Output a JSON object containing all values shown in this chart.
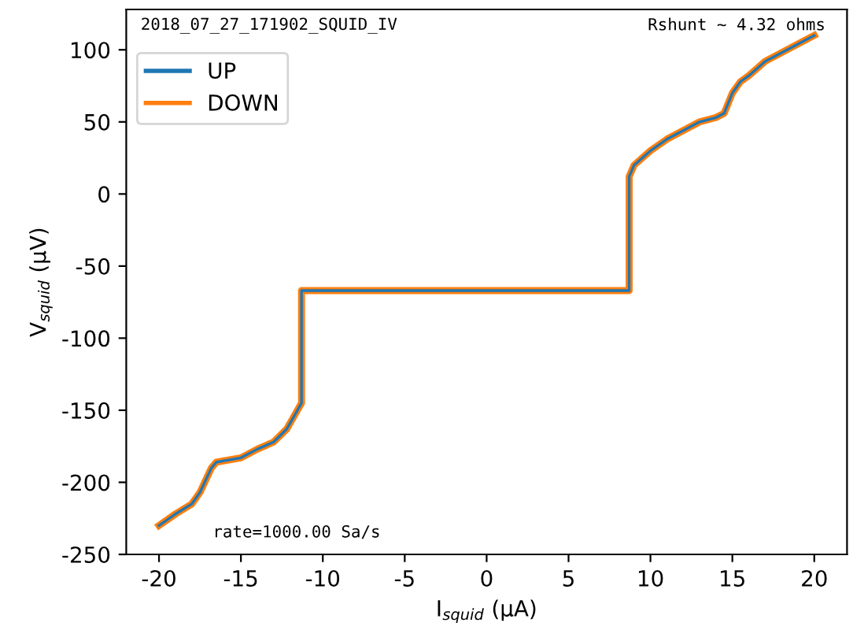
{
  "chart_data": {
    "type": "line",
    "xlabel": "I$_{squid}$ (μA)",
    "ylabel": "V$_{squid}$ (μV)",
    "xlim": [
      -22,
      22
    ],
    "ylim": [
      -250,
      128
    ],
    "xticks": [
      -20,
      -15,
      -10,
      -5,
      0,
      5,
      10,
      15,
      20
    ],
    "yticks": [
      -250,
      -200,
      -150,
      -100,
      -50,
      0,
      50,
      100
    ],
    "grid": false,
    "legend": "top left",
    "marker": "none",
    "line_style": "solid",
    "annotations": [
      "2018_07_27_171902_SQUID_IV",
      "Rshunt ~ 4.32 ohms",
      "rate=1000.00 Sa/s"
    ],
    "series": [
      {
        "name": "UP",
        "color": "#1f77b4",
        "x": [
          -20,
          -19,
          -18,
          -17.5,
          -16.8,
          -16.5,
          -15,
          -14,
          -13,
          -12.2,
          -11.8,
          -11.3,
          -11.3,
          -8,
          -4,
          0,
          4,
          8.7,
          8.7,
          9,
          10,
          11,
          12,
          13,
          14,
          14.5,
          15,
          15.5,
          16,
          17,
          18,
          19,
          20
        ],
        "values": [
          -230,
          -222,
          -215,
          -207,
          -190,
          -186,
          -183,
          -177,
          -172,
          -163,
          -155,
          -145,
          -67,
          -67,
          -67,
          -67,
          -67,
          -67,
          12,
          20,
          30,
          38,
          44,
          50,
          53,
          56,
          70,
          78,
          82,
          92,
          98,
          104,
          110
        ]
      },
      {
        "name": "DOWN",
        "color": "#ff7f0e",
        "x": [
          -20,
          -19,
          -18,
          -17.5,
          -16.8,
          -16.5,
          -15,
          -14,
          -13,
          -12.2,
          -11.8,
          -11.3,
          -11.3,
          -8,
          -4,
          0,
          4,
          8.7,
          8.7,
          9,
          10,
          11,
          12,
          13,
          14,
          14.5,
          15,
          15.5,
          16,
          17,
          18,
          19,
          20
        ],
        "values": [
          -230,
          -222,
          -215,
          -207,
          -190,
          -186,
          -183,
          -177,
          -172,
          -163,
          -155,
          -145,
          -67,
          -67,
          -67,
          -67,
          -67,
          -67,
          12,
          20,
          30,
          38,
          44,
          50,
          53,
          56,
          70,
          78,
          82,
          92,
          98,
          104,
          110
        ]
      }
    ]
  }
}
